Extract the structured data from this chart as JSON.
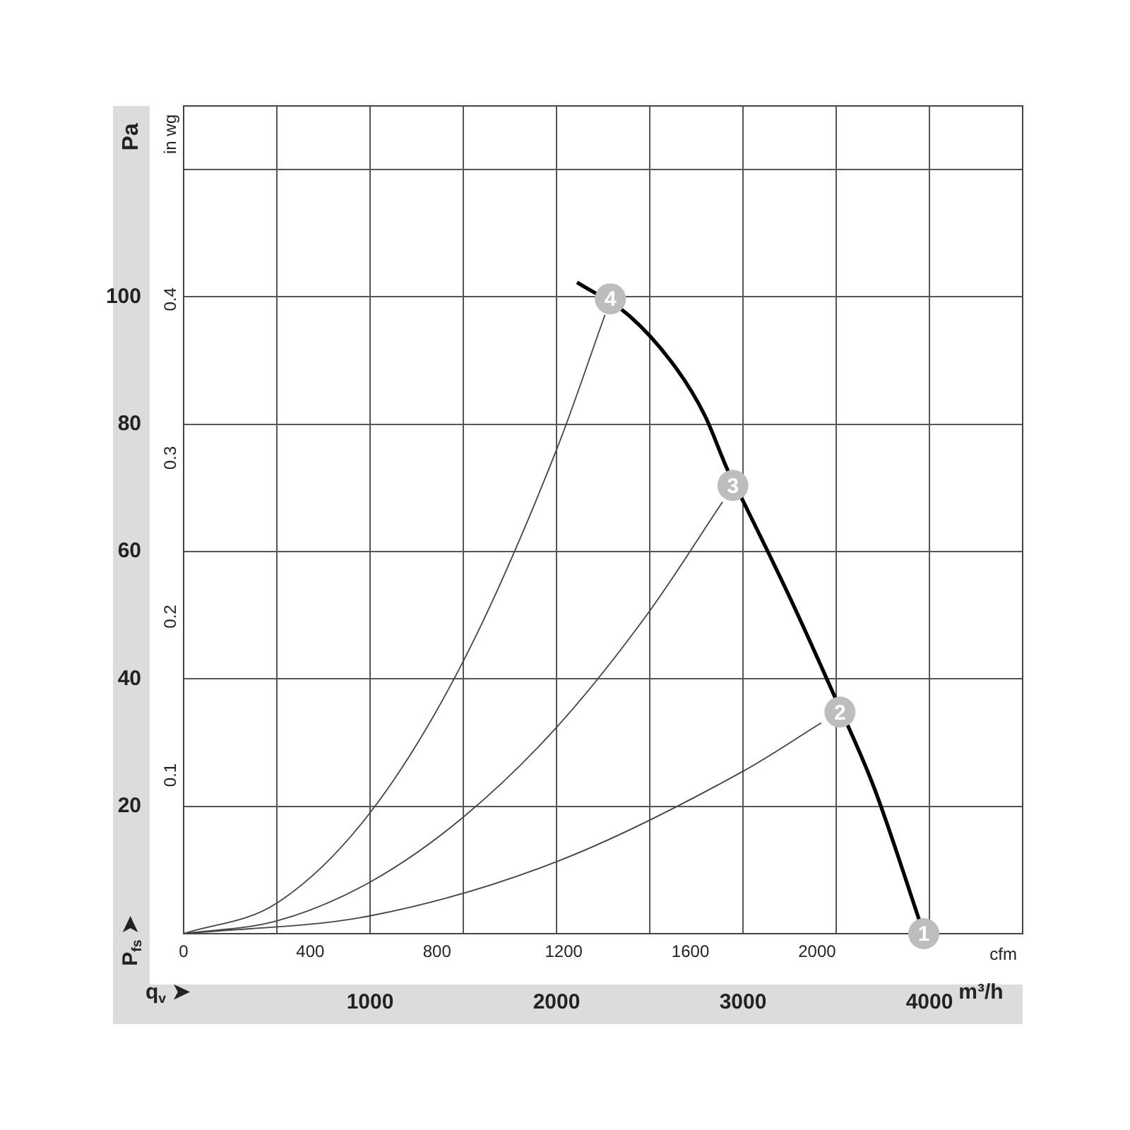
{
  "chart_data": {
    "type": "line",
    "xlabel": "m³/h",
    "x2label": "cfm",
    "ylabel": "Pa",
    "y2label": "in wg",
    "annotations": [
      "P$_{fs}$ ➤",
      "q$_{v}$ ➤",
      {
        "text": "1",
        "x": 3970,
        "y": 0
      },
      {
        "text": "2",
        "x": 3520,
        "y": 34.8
      },
      {
        "text": "3",
        "x": 2946,
        "y": 70.4
      },
      {
        "text": "4",
        "x": 2289,
        "y": 99.7
      }
    ],
    "series": [
      {
        "color": "#000000",
        "x": [
          2110,
          2392,
          2644,
          2795,
          2921,
          3008,
          3248,
          3474,
          3701,
          3970
        ],
        "values": [
          102.3,
          97,
          88.7,
          81.4,
          72.6,
          67.5,
          53,
          38.4,
          23.1,
          0
        ]
      },
      {
        "color": "#444444",
        "x": [
          0,
          500,
          1000,
          1500,
          2000,
          2260
        ],
        "values": [
          0,
          4.8,
          19,
          42.8,
          76,
          97.2
        ]
      },
      {
        "color": "#444444",
        "x": [
          0,
          500,
          1000,
          1500,
          2000,
          2500,
          2890
        ],
        "values": [
          0,
          2,
          8.1,
          18.3,
          32.4,
          50.7,
          67.8
        ]
      },
      {
        "color": "#444444",
        "x": [
          0,
          1000,
          2000,
          3000,
          3420
        ],
        "values": [
          0,
          2.8,
          11.3,
          25.5,
          33.1
        ]
      }
    ],
    "xlim": [
      0,
      4500
    ],
    "xticks": [
      {
        "value": 500,
        "label": null
      },
      1000,
      {
        "value": 1500,
        "label": null
      },
      2000,
      {
        "value": 2500,
        "label": null
      },
      3000,
      {
        "value": 3500,
        "label": null
      },
      4000
    ],
    "x2lim": [
      0,
      2649
    ],
    "x2ticks": [
      0,
      400,
      800,
      1200,
      1600,
      2000
    ],
    "ylim": [
      0,
      130
    ],
    "yticks": [
      20,
      40,
      60,
      80,
      100,
      {
        "value": 120,
        "label": null
      }
    ],
    "y2lim": [
      0,
      0.522
    ],
    "y2ticks": [
      0.1,
      0.2,
      0.3,
      0.4
    ],
    "grid": true,
    "legend": false
  }
}
